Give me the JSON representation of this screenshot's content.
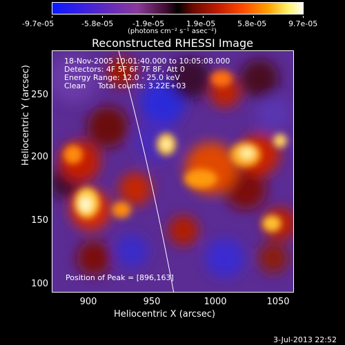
{
  "colorbar": {
    "tick_labels": [
      "-9.7e-05",
      "-5.8e-05",
      "-1.9e-05",
      "1.9e-05",
      "5.8e-05",
      "9.7e-05"
    ],
    "units": "(photons cm⁻² s⁻¹ asec⁻²)"
  },
  "title": "Reconstructed RHESSI Image",
  "info": {
    "line1": "18-Nov-2005 10:01:40.000 to 10:05:08.000",
    "line2": "Detectors: 4F 5F 6F 7F 8F, Att 0",
    "line3": "Energy Range: 12.0 - 25.0 keV",
    "line4": "Clean     Total counts: 3.22E+03"
  },
  "peak_text": "Position of Peak = [896,163]",
  "axes": {
    "xlabel": "Heliocentric X (arcsec)",
    "ylabel": "Heliocentric Y (arcsec)",
    "x_ticks": [
      "900",
      "950",
      "1000",
      "1050"
    ],
    "y_ticks": [
      "100",
      "150",
      "200",
      "250"
    ]
  },
  "footer_date": "3-Jul-2013 22:52"
}
